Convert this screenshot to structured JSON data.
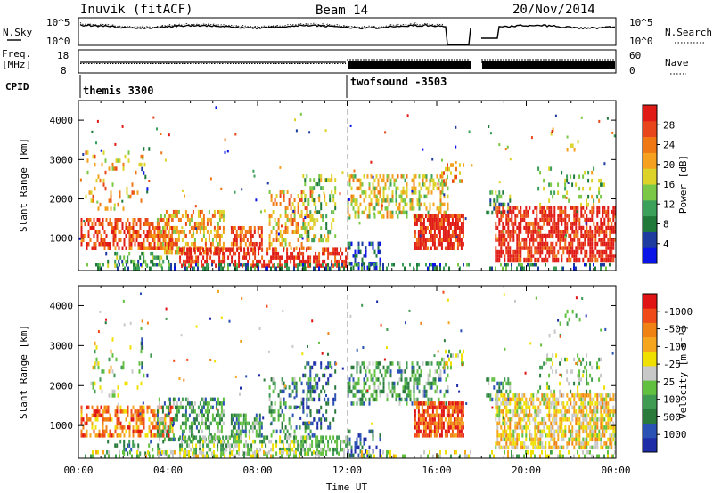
{
  "header": {
    "station": "Inuvik (fitACF)",
    "beam": "Beam 14",
    "date": "20/Nov/2014"
  },
  "top_panels": {
    "nsky_label": "N.Sky",
    "nsky_ticks": [
      "10^5",
      "10^0"
    ],
    "nsearch_label": "N.Search",
    "nsearch_ticks": [
      "10^5",
      "10^0"
    ],
    "freq_label_1": "Freq.",
    "freq_label_2": "[MHz]",
    "freq_ticks": [
      "18",
      "8"
    ],
    "nave_label": "Nave",
    "nave_ticks": [
      "60",
      "0"
    ],
    "cpid_label": "CPID",
    "cpid_segments": [
      {
        "name": "themis 3300",
        "start_hour": 0
      },
      {
        "name": "twofsound -3503",
        "start_hour": 12
      }
    ]
  },
  "chart_data": [
    {
      "type": "heatmap",
      "title": "",
      "xlabel": "",
      "ylabel": "Slant Range [km]",
      "xlim_hours": [
        0,
        24
      ],
      "ylim": [
        180,
        4500
      ],
      "y_ticks": [
        1000,
        2000,
        3000,
        4000
      ],
      "colorbar": {
        "label": "Power [dB]",
        "ticks": [
          "4",
          "8",
          "12",
          "16",
          "20",
          "24",
          "28"
        ],
        "colors": [
          "#0a14e6",
          "#1e3ca0",
          "#1f7a3a",
          "#3aa05a",
          "#7ac846",
          "#dcd228",
          "#f5a01e",
          "#f07814",
          "#e8461a",
          "#e01a14"
        ]
      }
    },
    {
      "type": "heatmap",
      "title": "",
      "xlabel": "Time UT",
      "ylabel": "Slant Range [km]",
      "xlim_hours": [
        0,
        24
      ],
      "ylim": [
        180,
        4500
      ],
      "y_ticks": [
        1000,
        2000,
        3000,
        4000
      ],
      "x_ticks": [
        "00:00",
        "04:00",
        "08:00",
        "12:00",
        "16:00",
        "20:00",
        "00:00"
      ],
      "colorbar": {
        "label": "Velocity [m s⁻¹]",
        "ticks": [
          "1000",
          "500",
          "100",
          "25",
          "-25",
          "-100",
          "-500",
          "-1000"
        ],
        "colors": [
          "#1e2ca8",
          "#2a52b4",
          "#2a7a3c",
          "#3f9a52",
          "#62c040",
          "#c8c8c8",
          "#f0e000",
          "#f5a51e",
          "#f08214",
          "#f04a18",
          "#e01414"
        ]
      }
    }
  ]
}
